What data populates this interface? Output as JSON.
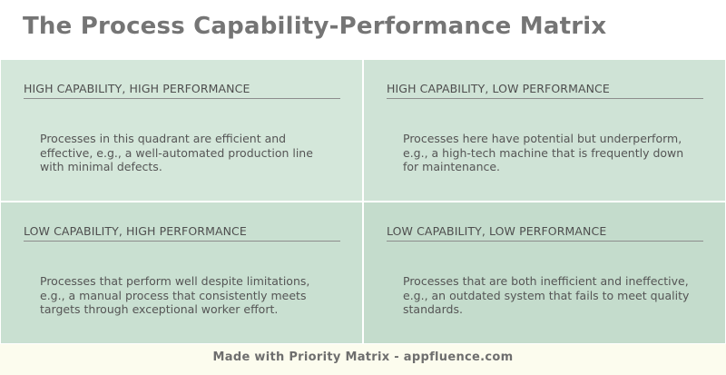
{
  "title": "The Process Capability-Performance Matrix",
  "quadrants": [
    {
      "heading": "HIGH CAPABILITY, HIGH PERFORMANCE",
      "body": "Processes in this quadrant are efficient and effective, e.g., a well-automated production line with minimal defects."
    },
    {
      "heading": "HIGH CAPABILITY, LOW PERFORMANCE",
      "body": "Processes here have potential but underperform, e.g., a high-tech machine that is frequently down for maintenance."
    },
    {
      "heading": "LOW CAPABILITY, HIGH PERFORMANCE",
      "body": "Processes that perform well despite limitations, e.g., a manual process that consistently meets targets through exceptional worker effort."
    },
    {
      "heading": "LOW CAPABILITY, LOW PERFORMANCE",
      "body": "Processes that are both inefficient and ineffective, e.g., an outdated system that fails to meet quality standards."
    }
  ],
  "footer": "Made with Priority Matrix - appfluence.com",
  "colors": {
    "title": "#757575",
    "q1": "#d4e7da",
    "q2": "#cfe3d6",
    "q3": "#c9e0d1",
    "q4": "#c4dccc",
    "footer_bg": "#fcfcee"
  }
}
